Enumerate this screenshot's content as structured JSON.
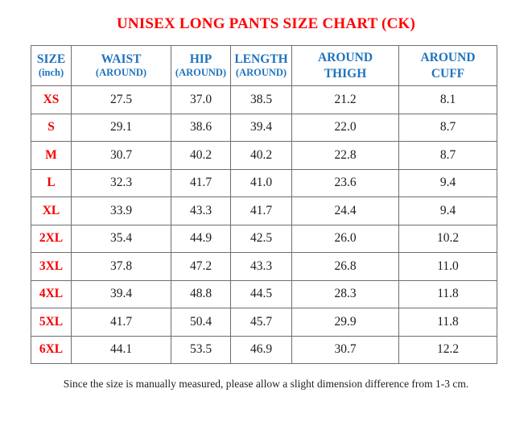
{
  "title": "UNISEX LONG PANTS SIZE CHART (CK)",
  "colors": {
    "title_red": "#fe0000",
    "header_blue": "#1e73be",
    "size_label_red": "#f40000",
    "border_gray": "#6e6e6e",
    "value_text": "#1c1c1c"
  },
  "table": {
    "headers": [
      {
        "line1": "SIZE",
        "line2": "(inch)"
      },
      {
        "line1": "WAIST",
        "line2": "(AROUND)"
      },
      {
        "line1": "HIP",
        "line2": "(AROUND)"
      },
      {
        "line1": "LENGTH",
        "line2": "(AROUND)"
      },
      {
        "line1": "AROUND",
        "line2": "THIGH"
      },
      {
        "line1": "AROUND",
        "line2": "CUFF"
      }
    ],
    "rows": [
      {
        "size": "XS",
        "values": [
          "27.5",
          "37.0",
          "38.5",
          "21.2",
          "8.1"
        ]
      },
      {
        "size": "S",
        "values": [
          "29.1",
          "38.6",
          "39.4",
          "22.0",
          "8.7"
        ]
      },
      {
        "size": "M",
        "values": [
          "30.7",
          "40.2",
          "40.2",
          "22.8",
          "8.7"
        ]
      },
      {
        "size": "L",
        "values": [
          "32.3",
          "41.7",
          "41.0",
          "23.6",
          "9.4"
        ]
      },
      {
        "size": "XL",
        "values": [
          "33.9",
          "43.3",
          "41.7",
          "24.4",
          "9.4"
        ]
      },
      {
        "size": "2XL",
        "values": [
          "35.4",
          "44.9",
          "42.5",
          "26.0",
          "10.2"
        ]
      },
      {
        "size": "3XL",
        "values": [
          "37.8",
          "47.2",
          "43.3",
          "26.8",
          "11.0"
        ]
      },
      {
        "size": "4XL",
        "values": [
          "39.4",
          "48.8",
          "44.5",
          "28.3",
          "11.8"
        ]
      },
      {
        "size": "5XL",
        "values": [
          "41.7",
          "50.4",
          "45.7",
          "29.9",
          "11.8"
        ]
      },
      {
        "size": "6XL",
        "values": [
          "44.1",
          "53.5",
          "46.9",
          "30.7",
          "12.2"
        ]
      }
    ]
  },
  "footer_note": "Since the size is manually measured, please allow a slight dimension difference from 1-3 cm."
}
